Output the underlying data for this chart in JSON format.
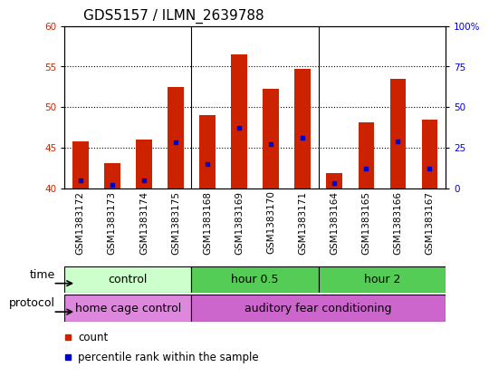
{
  "title": "GDS5157 / ILMN_2639788",
  "samples": [
    "GSM1383172",
    "GSM1383173",
    "GSM1383174",
    "GSM1383175",
    "GSM1383168",
    "GSM1383169",
    "GSM1383170",
    "GSM1383171",
    "GSM1383164",
    "GSM1383165",
    "GSM1383166",
    "GSM1383167"
  ],
  "counts": [
    45.8,
    43.1,
    46.0,
    52.5,
    49.0,
    56.5,
    52.3,
    54.7,
    41.9,
    48.1,
    53.5,
    48.5
  ],
  "percentile_ranks": [
    5.0,
    2.0,
    5.0,
    28.0,
    15.0,
    37.0,
    27.0,
    31.0,
    3.0,
    12.0,
    29.0,
    12.0
  ],
  "ylim_left": [
    40,
    60
  ],
  "ylim_right": [
    0,
    100
  ],
  "yticks_left": [
    40,
    45,
    50,
    55,
    60
  ],
  "yticks_right": [
    0,
    25,
    50,
    75,
    100
  ],
  "ytick_labels_right": [
    "0",
    "25",
    "50",
    "75",
    "100%"
  ],
  "bar_color": "#cc2200",
  "percentile_color": "#0000cc",
  "time_groups": [
    {
      "label": "control",
      "start": 0,
      "end": 4,
      "color": "#ccffcc"
    },
    {
      "label": "hour 0.5",
      "start": 4,
      "end": 8,
      "color": "#55cc55"
    },
    {
      "label": "hour 2",
      "start": 8,
      "end": 12,
      "color": "#55cc55"
    }
  ],
  "protocol_groups": [
    {
      "label": "home cage control",
      "start": 0,
      "end": 4,
      "color": "#dd88dd"
    },
    {
      "label": "auditory fear conditioning",
      "start": 4,
      "end": 12,
      "color": "#cc66cc"
    }
  ],
  "time_label": "time",
  "protocol_label": "protocol",
  "legend_count": "count",
  "legend_percentile": "percentile rank within the sample",
  "bar_width": 0.5,
  "left_tick_color": "#cc2200",
  "right_tick_color": "#0000cc",
  "dotted_grid_lines": [
    45,
    50,
    55
  ],
  "title_fontsize": 11,
  "tick_fontsize": 7.5,
  "group_fontsize": 9,
  "legend_fontsize": 8.5
}
